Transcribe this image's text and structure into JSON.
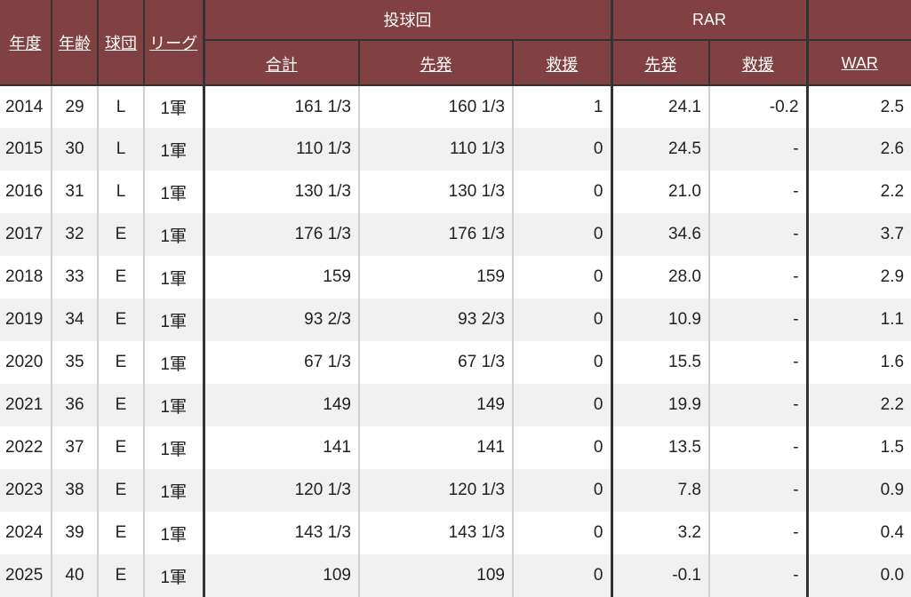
{
  "colors": {
    "header": "#814042",
    "stripe": "#f1f1f1"
  },
  "header": {
    "group_ip": "投球回",
    "group_rar": "RAR",
    "cols": [
      "年度",
      "年齢",
      "球団",
      "リーグ",
      "合計",
      "先発",
      "救援",
      "先発",
      "救援",
      "WAR"
    ]
  },
  "rows": [
    [
      "2014",
      "29",
      "L",
      "1軍",
      "161 1/3",
      "160 1/3",
      "1",
      "24.1",
      "-0.2",
      "2.5"
    ],
    [
      "2015",
      "30",
      "L",
      "1軍",
      "110 1/3",
      "110 1/3",
      "0",
      "24.5",
      "-",
      "2.6"
    ],
    [
      "2016",
      "31",
      "L",
      "1軍",
      "130 1/3",
      "130 1/3",
      "0",
      "21.0",
      "-",
      "2.2"
    ],
    [
      "2017",
      "32",
      "E",
      "1軍",
      "176 1/3",
      "176 1/3",
      "0",
      "34.6",
      "-",
      "3.7"
    ],
    [
      "2018",
      "33",
      "E",
      "1軍",
      "159",
      "159",
      "0",
      "28.0",
      "-",
      "2.9"
    ],
    [
      "2019",
      "34",
      "E",
      "1軍",
      "93 2/3",
      "93 2/3",
      "0",
      "10.9",
      "-",
      "1.1"
    ],
    [
      "2020",
      "35",
      "E",
      "1軍",
      "67 1/3",
      "67 1/3",
      "0",
      "15.5",
      "-",
      "1.6"
    ],
    [
      "2021",
      "36",
      "E",
      "1軍",
      "149",
      "149",
      "0",
      "19.9",
      "-",
      "2.2"
    ],
    [
      "2022",
      "37",
      "E",
      "1軍",
      "141",
      "141",
      "0",
      "13.5",
      "-",
      "1.5"
    ],
    [
      "2023",
      "38",
      "E",
      "1軍",
      "120 1/3",
      "120 1/3",
      "0",
      "7.8",
      "-",
      "0.9"
    ],
    [
      "2024",
      "39",
      "E",
      "1軍",
      "143 1/3",
      "143 1/3",
      "0",
      "3.2",
      "-",
      "0.4"
    ],
    [
      "2025",
      "40",
      "E",
      "1軍",
      "109",
      "109",
      "0",
      "-0.1",
      "-",
      "0.0"
    ]
  ]
}
